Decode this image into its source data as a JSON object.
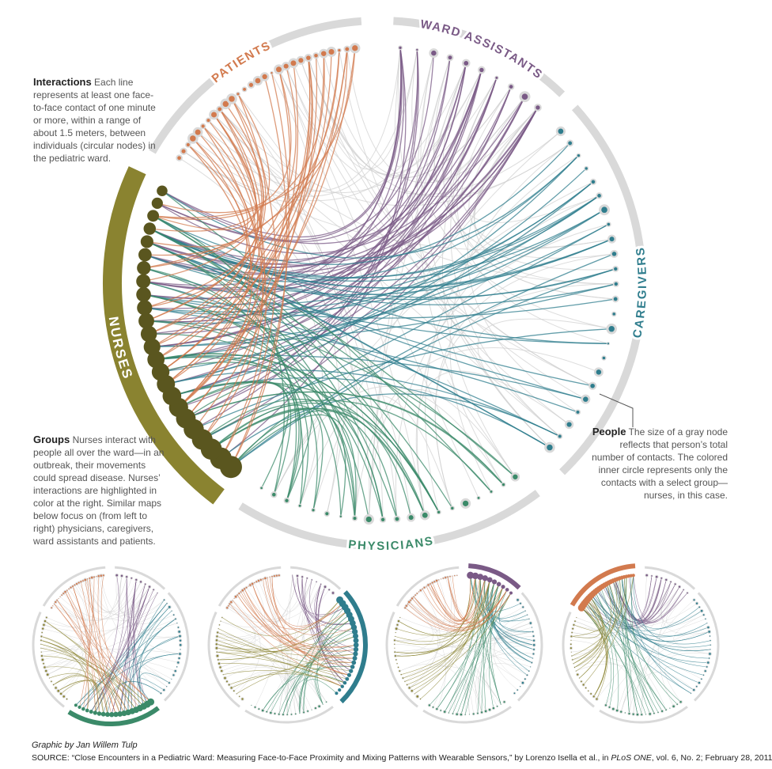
{
  "groups": [
    {
      "id": "ward",
      "label": "WARD ASSISTANTS",
      "color": "#7a5a86",
      "nodes": 10
    },
    {
      "id": "care",
      "label": "CAREGIVERS",
      "color": "#2f7d8d",
      "nodes": 24
    },
    {
      "id": "phys",
      "label": "PHYSICIANS",
      "color": "#3b8a69",
      "nodes": 20
    },
    {
      "id": "nurse",
      "label": "NURSES",
      "color": "#8a8330",
      "nodes": 24
    },
    {
      "id": "pat",
      "label": "PATIENTS",
      "color": "#d27a4e",
      "nodes": 28
    }
  ],
  "colors": {
    "ring": "#d9d9d9",
    "gray_edge": "#cfcfcf",
    "nurse_node": "#5a561f",
    "text_dark": "#222222",
    "text_body": "#555555"
  },
  "annotations": {
    "interactions": {
      "heading": "Interactions",
      "body": "Each line represents at least one face-to-face contact of one minute or more, within a range of about 1.5 meters, between individuals (circular nodes) in the pediatric ward."
    },
    "groups": {
      "heading": "Groups",
      "body": "Nurses interact with people all over the ward—in an outbreak, their movements could spread disease. Nurses’ interactions are highlighted in color at the right. Similar maps below focus on (from left to right) physicians, caregivers, ward assistants and patients."
    },
    "people": {
      "heading": "People",
      "body": "The size of a gray node reflects that person’s total number of contacts. The colored inner circle represents only the contacts with a select group—nurses, in this case."
    }
  },
  "small_multiples": [
    {
      "focus": "phys"
    },
    {
      "focus": "care"
    },
    {
      "focus": "ward"
    },
    {
      "focus": "pat"
    }
  ],
  "footer": {
    "credit": "Graphic by Jan Willem Tulp",
    "source_prefix": "SOURCE: “Close Encounters in a Pediatric Ward: Measuring Face-to-Face Proximity and Mixing Patterns with Wearable Sensors,” by Lorenzo Isella et al., in ",
    "source_journal": "PLoS ONE",
    "source_suffix": ", vol. 6, No. 2; February 28, 2011"
  }
}
